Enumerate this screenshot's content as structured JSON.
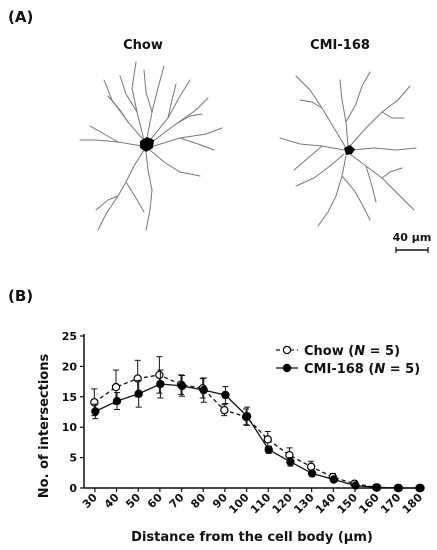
{
  "panels": {
    "a": {
      "label": "(A)",
      "titles": [
        "Chow",
        "CMI-168"
      ],
      "scale_bar_label": "40 μm"
    },
    "b": {
      "label": "(B)"
    }
  },
  "chart_data": {
    "type": "line",
    "xlabel": "Distance from the cell body (μm)",
    "ylabel": "No. of intersections",
    "x": [
      30,
      40,
      50,
      60,
      70,
      80,
      90,
      100,
      110,
      120,
      130,
      140,
      150,
      160,
      170,
      180
    ],
    "ylim": [
      0,
      25
    ],
    "yticks": [
      0,
      5,
      10,
      15,
      20,
      25
    ],
    "legend_position": "top-right",
    "series": [
      {
        "name": "Chow",
        "n_label": "N",
        "n_value": "= 5)",
        "marker": "open-circle",
        "line": "dashed",
        "values": [
          14.1,
          16.6,
          18.0,
          18.6,
          17.0,
          16.4,
          12.8,
          11.7,
          8.0,
          5.4,
          3.5,
          1.8,
          0.7,
          0.1,
          0.0,
          0.0
        ],
        "errors": [
          2.2,
          2.8,
          3.0,
          3.0,
          1.6,
          1.6,
          0.9,
          1.3,
          1.3,
          1.2,
          0.9,
          0.6,
          0.4,
          0.1,
          0.0,
          0.0
        ]
      },
      {
        "name": "CMI-168",
        "n_label": "N",
        "n_value": "= 5)",
        "marker": "filled-circle",
        "line": "solid",
        "values": [
          12.6,
          14.3,
          15.5,
          17.1,
          16.8,
          16.1,
          15.3,
          11.8,
          6.3,
          4.3,
          2.4,
          1.4,
          0.4,
          0.1,
          0.0,
          0.0
        ],
        "errors": [
          1.2,
          1.4,
          2.2,
          2.3,
          1.7,
          2.0,
          1.4,
          1.5,
          0.6,
          0.7,
          0.5,
          0.3,
          0.2,
          0.1,
          0.0,
          0.0
        ]
      }
    ]
  }
}
